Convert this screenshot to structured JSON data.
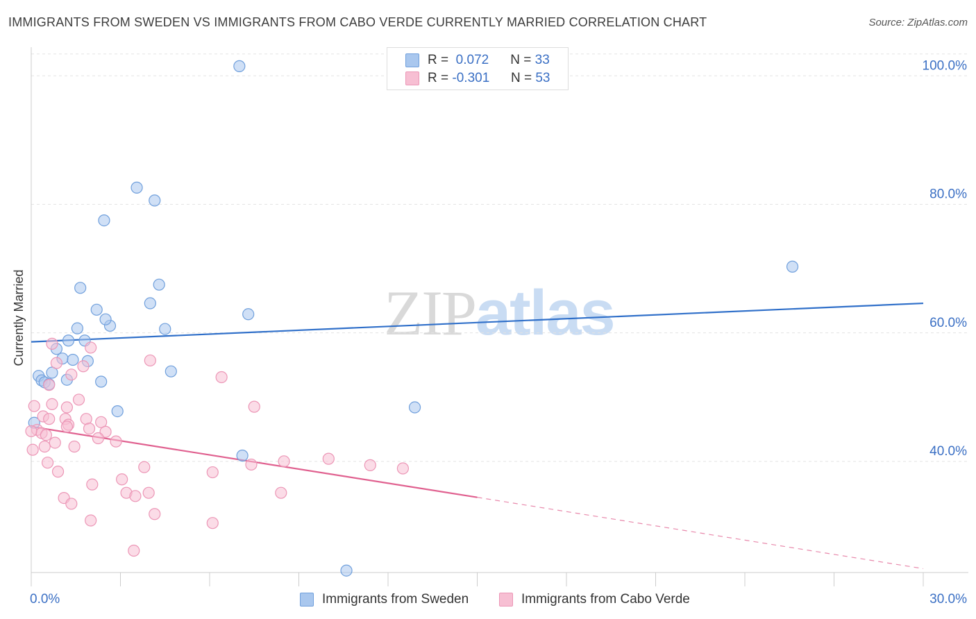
{
  "title": "IMMIGRANTS FROM SWEDEN VS IMMIGRANTS FROM CABO VERDE CURRENTLY MARRIED CORRELATION CHART",
  "source": "Source: ZipAtlas.com",
  "watermark": {
    "zip": "ZIP",
    "atlas": "atlas"
  },
  "stats": {
    "rows": [
      {
        "r_label": "R =",
        "r_value": "0.072",
        "n_label": "N =",
        "n_value": "33"
      },
      {
        "r_label": "R =",
        "r_value": "-0.301",
        "n_label": "N =",
        "n_value": "53"
      }
    ]
  },
  "chart_data": {
    "type": "scatter",
    "ylabel": "Currently Married",
    "xlim": [
      0,
      30
    ],
    "ylim": [
      21,
      102
    ],
    "x_ticks_labeled": [
      "0.0%",
      "30.0%"
    ],
    "y_ticks": [
      {
        "value": 100,
        "label": "100.0%"
      },
      {
        "value": 80,
        "label": "80.0%"
      },
      {
        "value": 60,
        "label": "60.0%"
      },
      {
        "value": 40,
        "label": "40.0%"
      }
    ],
    "legend": [
      "Immigrants from Sweden",
      "Immigrants from Cabo Verde"
    ],
    "series": [
      {
        "name": "Immigrants from Sweden",
        "color": "#a9c7ee",
        "stroke": "#6f9fdc",
        "line_color": "#2f6fc9",
        "trend": {
          "x": [
            0,
            30
          ],
          "y": [
            56.9,
            62.9
          ]
        },
        "points": [
          [
            7.0,
            99.8
          ],
          [
            3.55,
            80.9
          ],
          [
            4.15,
            78.9
          ],
          [
            2.45,
            75.8
          ],
          [
            25.6,
            68.6
          ],
          [
            1.65,
            65.3
          ],
          [
            4.3,
            65.8
          ],
          [
            4.0,
            62.9
          ],
          [
            2.2,
            61.9
          ],
          [
            7.3,
            61.2
          ],
          [
            2.65,
            59.4
          ],
          [
            2.5,
            60.4
          ],
          [
            1.55,
            59.0
          ],
          [
            4.5,
            58.9
          ],
          [
            1.25,
            57.1
          ],
          [
            1.8,
            57.1
          ],
          [
            0.85,
            55.8
          ],
          [
            1.05,
            54.3
          ],
          [
            1.4,
            54.1
          ],
          [
            1.9,
            53.9
          ],
          [
            0.7,
            52.1
          ],
          [
            0.25,
            51.6
          ],
          [
            0.35,
            50.9
          ],
          [
            0.45,
            50.6
          ],
          [
            1.2,
            51.0
          ],
          [
            0.6,
            50.3
          ],
          [
            2.35,
            50.7
          ],
          [
            4.7,
            52.3
          ],
          [
            12.9,
            46.7
          ],
          [
            2.9,
            46.1
          ],
          [
            0.1,
            44.3
          ],
          [
            7.1,
            39.2
          ],
          [
            10.6,
            21.3
          ]
        ]
      },
      {
        "name": "Immigrants from Cabo Verde",
        "color": "#f7bfd3",
        "stroke": "#ec96b6",
        "line_color": "#e0608f",
        "trend": {
          "x": [
            0,
            15
          ],
          "y": [
            43.7,
            32.7
          ]
        },
        "trend_dashed": {
          "x": [
            15,
            30
          ],
          "y": [
            32.7,
            21.6
          ]
        },
        "points": [
          [
            0.7,
            56.6
          ],
          [
            2.0,
            56.0
          ],
          [
            4.0,
            54.0
          ],
          [
            0.85,
            53.6
          ],
          [
            1.75,
            53.1
          ],
          [
            6.4,
            51.4
          ],
          [
            1.35,
            51.8
          ],
          [
            0.6,
            50.2
          ],
          [
            1.6,
            47.9
          ],
          [
            0.1,
            46.9
          ],
          [
            0.7,
            47.2
          ],
          [
            7.5,
            46.8
          ],
          [
            1.2,
            46.7
          ],
          [
            1.15,
            44.9
          ],
          [
            0.4,
            45.3
          ],
          [
            0.6,
            44.9
          ],
          [
            1.85,
            44.9
          ],
          [
            2.35,
            44.4
          ],
          [
            1.25,
            44.0
          ],
          [
            1.2,
            43.7
          ],
          [
            0.2,
            43.2
          ],
          [
            1.95,
            43.4
          ],
          [
            2.5,
            42.9
          ],
          [
            0.35,
            42.7
          ],
          [
            0.5,
            42.4
          ],
          [
            2.25,
            41.9
          ],
          [
            1.45,
            40.6
          ],
          [
            2.85,
            41.4
          ],
          [
            0.8,
            41.2
          ],
          [
            0.05,
            40.1
          ],
          [
            0.45,
            40.6
          ],
          [
            8.5,
            38.3
          ],
          [
            10.0,
            38.7
          ],
          [
            11.4,
            37.7
          ],
          [
            12.5,
            37.2
          ],
          [
            0.55,
            38.1
          ],
          [
            3.8,
            37.4
          ],
          [
            7.4,
            37.8
          ],
          [
            0.9,
            36.7
          ],
          [
            6.1,
            36.6
          ],
          [
            3.05,
            35.5
          ],
          [
            2.05,
            34.7
          ],
          [
            3.2,
            33.4
          ],
          [
            3.5,
            32.9
          ],
          [
            3.95,
            33.4
          ],
          [
            8.4,
            33.4
          ],
          [
            1.1,
            32.6
          ],
          [
            1.35,
            31.7
          ],
          [
            4.15,
            30.1
          ],
          [
            2.0,
            29.1
          ],
          [
            6.1,
            28.7
          ],
          [
            3.45,
            24.4
          ],
          [
            0.0,
            43.0
          ]
        ]
      }
    ]
  }
}
